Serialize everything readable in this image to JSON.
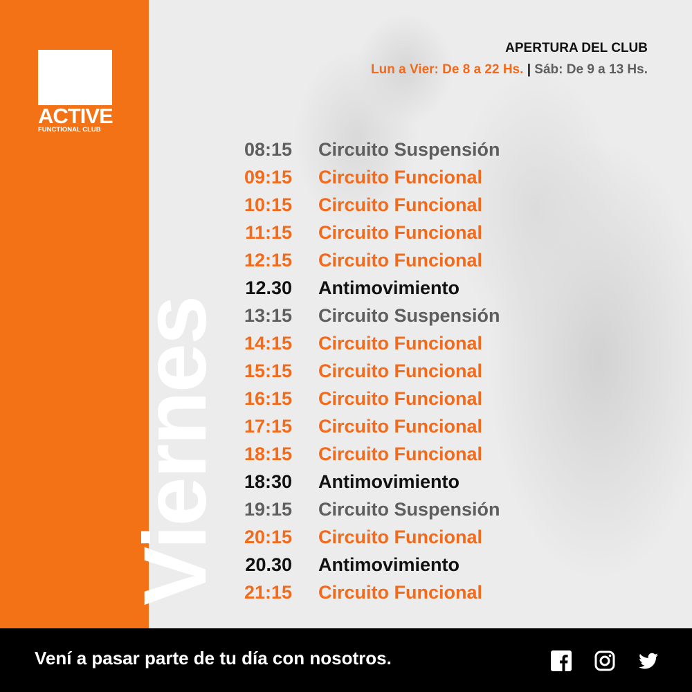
{
  "brand": {
    "logo_text": "ACTIVE",
    "logo_sub": "FUNCTIONAL CLUB"
  },
  "day": "Viernes",
  "opening": {
    "title": "APERTURA DEL CLUB",
    "weekdays": "Lun a Vier: De 8 a 22 Hs.",
    "separator": "|",
    "saturday": "Sáb: De 9 a 13 Hs."
  },
  "colors": {
    "orange": "#f47216",
    "gray": "#5e5e5e",
    "black": "#111111"
  },
  "schedule": [
    {
      "time": "08:15",
      "activity": "Circuito Suspensión",
      "color": "gray"
    },
    {
      "time": "09:15",
      "activity": "Circuito Funcional",
      "color": "orange"
    },
    {
      "time": "10:15",
      "activity": "Circuito Funcional",
      "color": "orange"
    },
    {
      "time": "11:15",
      "activity": "Circuito Funcional",
      "color": "orange"
    },
    {
      "time": "12:15",
      "activity": "Circuito Funcional",
      "color": "orange"
    },
    {
      "time": "12.30",
      "activity": "Antimovimiento",
      "color": "black"
    },
    {
      "time": "13:15",
      "activity": "Circuito Suspensión",
      "color": "gray"
    },
    {
      "time": "14:15",
      "activity": "Circuito Funcional",
      "color": "orange"
    },
    {
      "time": "15:15",
      "activity": "Circuito Funcional",
      "color": "orange"
    },
    {
      "time": "16:15",
      "activity": "Circuito Funcional",
      "color": "orange"
    },
    {
      "time": "17:15",
      "activity": "Circuito Funcional",
      "color": "orange"
    },
    {
      "time": "18:15",
      "activity": "Circuito Funcional",
      "color": "orange"
    },
    {
      "time": "18:30",
      "activity": "Antimovimiento",
      "color": "black"
    },
    {
      "time": "19:15",
      "activity": "Circuito Suspensión",
      "color": "gray"
    },
    {
      "time": "20:15",
      "activity": "Circuito Funcional",
      "color": "orange"
    },
    {
      "time": "20.30",
      "activity": "Antimovimiento",
      "color": "black"
    },
    {
      "time": "21:15",
      "activity": "Circuito Funcional",
      "color": "orange"
    }
  ],
  "footer": {
    "message": "Vení a pasar parte de tu día con nosotros.",
    "social": [
      "facebook-icon",
      "instagram-icon",
      "twitter-icon"
    ]
  }
}
